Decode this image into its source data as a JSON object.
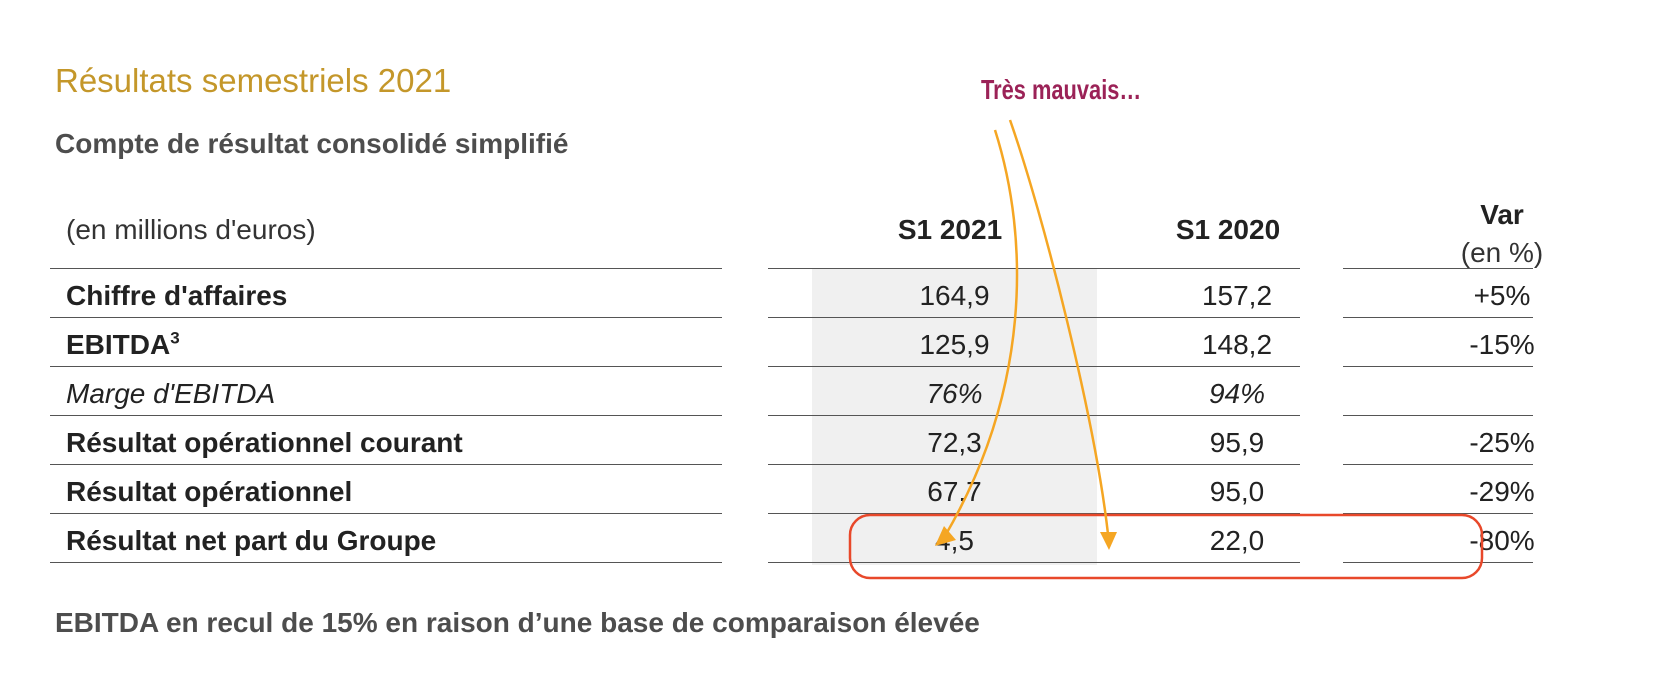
{
  "header": {
    "title": "Résultats semestriels 2021",
    "subtitle": "Compte de résultat consolidé simplifié"
  },
  "annotation": {
    "text": "Très mauvais…"
  },
  "table": {
    "unit_label": "(en millions d'euros)",
    "columns": [
      "S1 2021",
      "S1 2020"
    ],
    "var_header": {
      "title": "Var",
      "subtitle": "(en %)"
    },
    "rows": [
      {
        "label": "Chiffre d'affaires",
        "sup": "",
        "s1_2021": "164,9",
        "s1_2020": "157,2",
        "var": "+5%"
      },
      {
        "label": "EBITDA",
        "sup": "3",
        "s1_2021": "125,9",
        "s1_2020": "148,2",
        "var": "-15%"
      },
      {
        "label": "Marge d'EBITDA",
        "sup": "",
        "s1_2021": "76%",
        "s1_2020": "94%",
        "var": ""
      },
      {
        "label": "Résultat opérationnel courant",
        "sup": "",
        "s1_2021": "72,3",
        "s1_2020": "95,9",
        "var": "-25%"
      },
      {
        "label": "Résultat opérationnel",
        "sup": "",
        "s1_2021": "67,7",
        "s1_2020": "95,0",
        "var": "-29%"
      },
      {
        "label": "Résultat net part du Groupe",
        "sup": "",
        "s1_2021": "4,5",
        "s1_2020": "22,0",
        "var": "-80%"
      }
    ]
  },
  "footer": {
    "text": "EBITDA en recul de 15% en raison d’une base de comparaison élevée"
  },
  "colors": {
    "title": "#c4972a",
    "annotation": "#9b2257",
    "arrow": "#f5a623",
    "highlight": "#e8482a"
  }
}
